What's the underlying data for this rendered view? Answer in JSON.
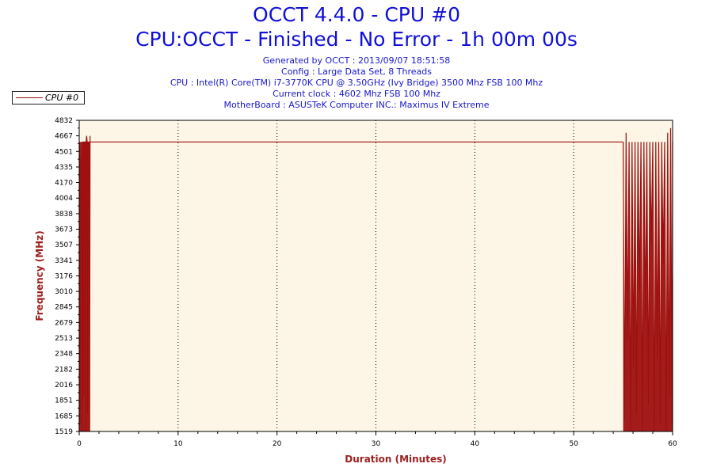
{
  "header": {
    "title": "OCCT 4.4.0 - CPU #0",
    "subtitle": "CPU:OCCT - Finished - No Error - 1h 00m 00s",
    "info_lines": [
      "Generated by OCCT : 2013/09/07 18:51:58",
      "Config : Large Data Set, 8 Threads",
      "CPU : Intel(R) Core(TM) i7-3770K CPU @ 3.50GHz (Ivy Bridge) 3500 Mhz FSB 100 Mhz",
      "Current clock : 4602 Mhz FSB 100 Mhz",
      "MotherBoard : ASUSTeK Computer INC.: Maximus IV Extreme"
    ]
  },
  "colors": {
    "title": "#1010d8",
    "series": "#9e1010",
    "plot_background": "#fdf6e6",
    "axis_title": "#9e2020"
  },
  "chart_data": {
    "type": "line",
    "title": "OCCT 4.4.0 - CPU #0",
    "xlabel": "Duration (Minutes)",
    "ylabel": "Frequency (MHz)",
    "xlim": [
      0,
      60
    ],
    "ylim": [
      1519,
      4832
    ],
    "x_ticks": [
      0,
      10,
      20,
      30,
      40,
      50,
      60
    ],
    "y_ticks": [
      1519,
      1685,
      1851,
      2016,
      2182,
      2348,
      2513,
      2679,
      2845,
      3010,
      3176,
      3341,
      3507,
      3673,
      3838,
      4004,
      4170,
      4335,
      4501,
      4667,
      4832
    ],
    "grid_x": true,
    "grid_y": false,
    "legend": "top-left",
    "series": [
      {
        "name": "CPU #0",
        "color": "#9e1010",
        "segments": [
          {
            "x": [
              0.0,
              0.05,
              0.1,
              0.15,
              0.2,
              0.25,
              0.3,
              0.35,
              0.4,
              0.45,
              0.5,
              0.55,
              0.6,
              0.65,
              0.7,
              0.75,
              0.8,
              0.85,
              0.9,
              0.95,
              1.0,
              1.05,
              1.1
            ],
            "y": [
              1519,
              4602,
              1600,
              4602,
              4400,
              4602,
              1519,
              4602,
              4602,
              1900,
              4602,
              4602,
              4602,
              1519,
              4602,
              4667,
              4602,
              1700,
              4602,
              4602,
              4602,
              1519,
              4667
            ]
          },
          {
            "x": [
              1.1,
              55.0
            ],
            "y": [
              4602,
              4602
            ]
          },
          {
            "x": [
              55.0,
              55.15,
              55.3,
              55.45,
              55.6,
              55.75,
              55.9,
              56.05,
              56.2,
              56.35,
              56.5,
              56.65,
              56.8,
              56.95,
              57.1,
              57.25,
              57.4,
              57.55,
              57.7,
              57.85,
              58.0,
              58.15,
              58.3,
              58.45,
              58.6,
              58.75,
              58.9,
              59.05,
              59.2,
              59.35,
              59.5,
              59.65,
              59.8,
              59.95,
              60.0
            ],
            "y": [
              4602,
              1650,
              4700,
              2500,
              4602,
              1519,
              4602,
              2200,
              4602,
              1700,
              4602,
              3000,
              4602,
              1519,
              4602,
              2700,
              4602,
              1800,
              4602,
              3500,
              4602,
              1519,
              4602,
              2300,
              4602,
              1600,
              4602,
              3300,
              4602,
              1519,
              4700,
              1900,
              4750,
              1600,
              4602
            ]
          }
        ]
      }
    ]
  }
}
